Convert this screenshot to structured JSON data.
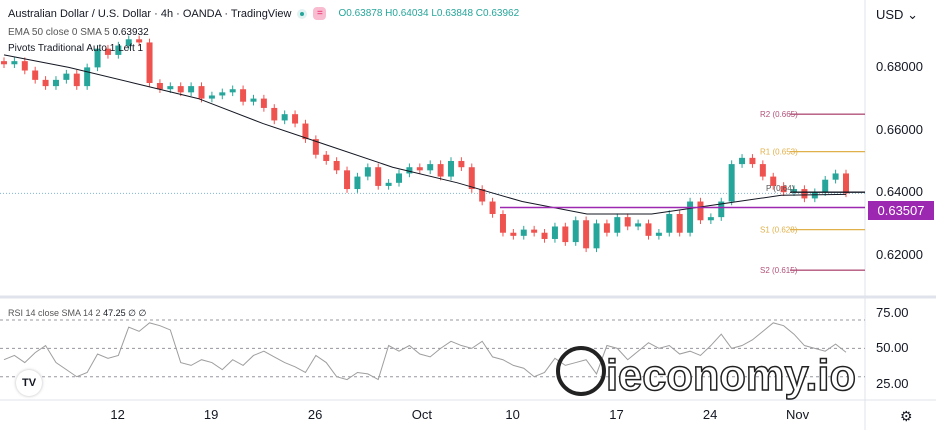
{
  "header": {
    "symbol_title": "Australian Dollar / U.S. Dollar · 4h · OANDA · TradingView",
    "ohlc": "O0.63878 H0.64034 L0.63848 C0.63962",
    "ema_label": "EMA 50 close 0 SMA 5",
    "ema_value": "0.63932",
    "pivots_label": "Pivots Traditional Auto 1 Left 1",
    "rsi_label": "RSI 14 close SMA 14 2",
    "rsi_value": "47.25 ∅ ∅"
  },
  "axis": {
    "currency": "USD",
    "current_price_label": "0.63507"
  },
  "watermark": {
    "text": "ieconomy.io"
  },
  "colors": {
    "up": "#26a69a",
    "down": "#ef5350",
    "ema": "#131722",
    "pivot_p": "#131722",
    "r2": "#b2527a",
    "r1": "#e0b04a",
    "s1": "#e0b04a",
    "s2": "#b2527a",
    "level_line": "#9c27b0",
    "rsi": "#9e9e9e"
  },
  "chart_data": [
    {
      "type": "candlestick",
      "ylim": [
        0.608,
        0.7
      ],
      "y_ticks": [
        {
          "value": 0.68,
          "label": "0.68000"
        },
        {
          "value": 0.66,
          "label": "0.66000"
        },
        {
          "value": 0.64,
          "label": "0.64000"
        },
        {
          "value": 0.62,
          "label": "0.62000"
        }
      ],
      "x_ticks": [
        {
          "label": "12",
          "at_candle": 11
        },
        {
          "label": "19",
          "at_candle": 20
        },
        {
          "label": "26",
          "at_candle": 30
        },
        {
          "label": "Oct",
          "at_candle": 40
        },
        {
          "label": "10",
          "at_candle": 49
        },
        {
          "label": "17",
          "at_candle": 59
        },
        {
          "label": "24",
          "at_candle": 68
        },
        {
          "label": "Nov",
          "at_candle": 76
        }
      ],
      "closes": [
        0.681,
        0.682,
        0.679,
        0.676,
        0.674,
        0.676,
        0.678,
        0.674,
        0.68,
        0.686,
        0.684,
        0.687,
        0.689,
        0.688,
        0.675,
        0.673,
        0.674,
        0.672,
        0.674,
        0.67,
        0.671,
        0.672,
        0.673,
        0.669,
        0.67,
        0.667,
        0.663,
        0.665,
        0.662,
        0.657,
        0.652,
        0.65,
        0.647,
        0.641,
        0.645,
        0.648,
        0.642,
        0.643,
        0.646,
        0.648,
        0.647,
        0.649,
        0.645,
        0.65,
        0.648,
        0.641,
        0.637,
        0.633,
        0.627,
        0.626,
        0.628,
        0.627,
        0.625,
        0.629,
        0.624,
        0.631,
        0.622,
        0.63,
        0.627,
        0.632,
        0.629,
        0.63,
        0.626,
        0.627,
        0.633,
        0.627,
        0.637,
        0.631,
        0.632,
        0.637,
        0.649,
        0.651,
        0.649,
        0.645,
        0.642,
        0.64,
        0.641,
        0.638,
        0.64,
        0.644,
        0.646,
        0.6396
      ],
      "ema50": [
        0.684,
        0.68,
        0.675,
        0.67,
        0.662,
        0.655,
        0.648,
        0.643,
        0.637,
        0.633,
        0.633,
        0.636,
        0.639,
        0.6393
      ],
      "pivots": [
        {
          "name": "R2",
          "value": 0.665,
          "label": "R2 (0.665)"
        },
        {
          "name": "R1",
          "value": 0.653,
          "label": "R1 (0.653)"
        },
        {
          "name": "P",
          "value": 0.64,
          "label": "P (0.64)"
        },
        {
          "name": "S1",
          "value": 0.628,
          "label": "S1 (0.628)"
        },
        {
          "name": "S2",
          "value": 0.615,
          "label": "S2 (0.615)"
        }
      ],
      "level_line": 0.63507
    },
    {
      "type": "line",
      "name": "RSI",
      "ylim": [
        15,
        82
      ],
      "y_ticks": [
        {
          "value": 75,
          "label": "75.00"
        },
        {
          "value": 50,
          "label": "50.00"
        },
        {
          "value": 25,
          "label": "25.00"
        }
      ],
      "bands": [
        70,
        50,
        30
      ],
      "values": [
        42,
        45,
        40,
        47,
        52,
        40,
        35,
        30,
        33,
        46,
        43,
        45,
        65,
        62,
        68,
        66,
        63,
        40,
        38,
        42,
        40,
        35,
        42,
        38,
        45,
        48,
        44,
        40,
        37,
        33,
        45,
        40,
        30,
        28,
        33,
        32,
        28,
        52,
        48,
        52,
        46,
        44,
        50,
        55,
        52,
        50,
        55,
        44,
        42,
        38,
        36,
        30,
        33,
        43,
        38,
        40,
        42,
        32,
        52,
        50,
        42,
        48,
        54,
        50,
        52,
        46,
        48,
        45,
        52,
        60,
        50,
        52,
        56,
        62,
        68,
        66,
        60,
        52,
        50,
        48,
        53,
        47.25
      ]
    }
  ]
}
